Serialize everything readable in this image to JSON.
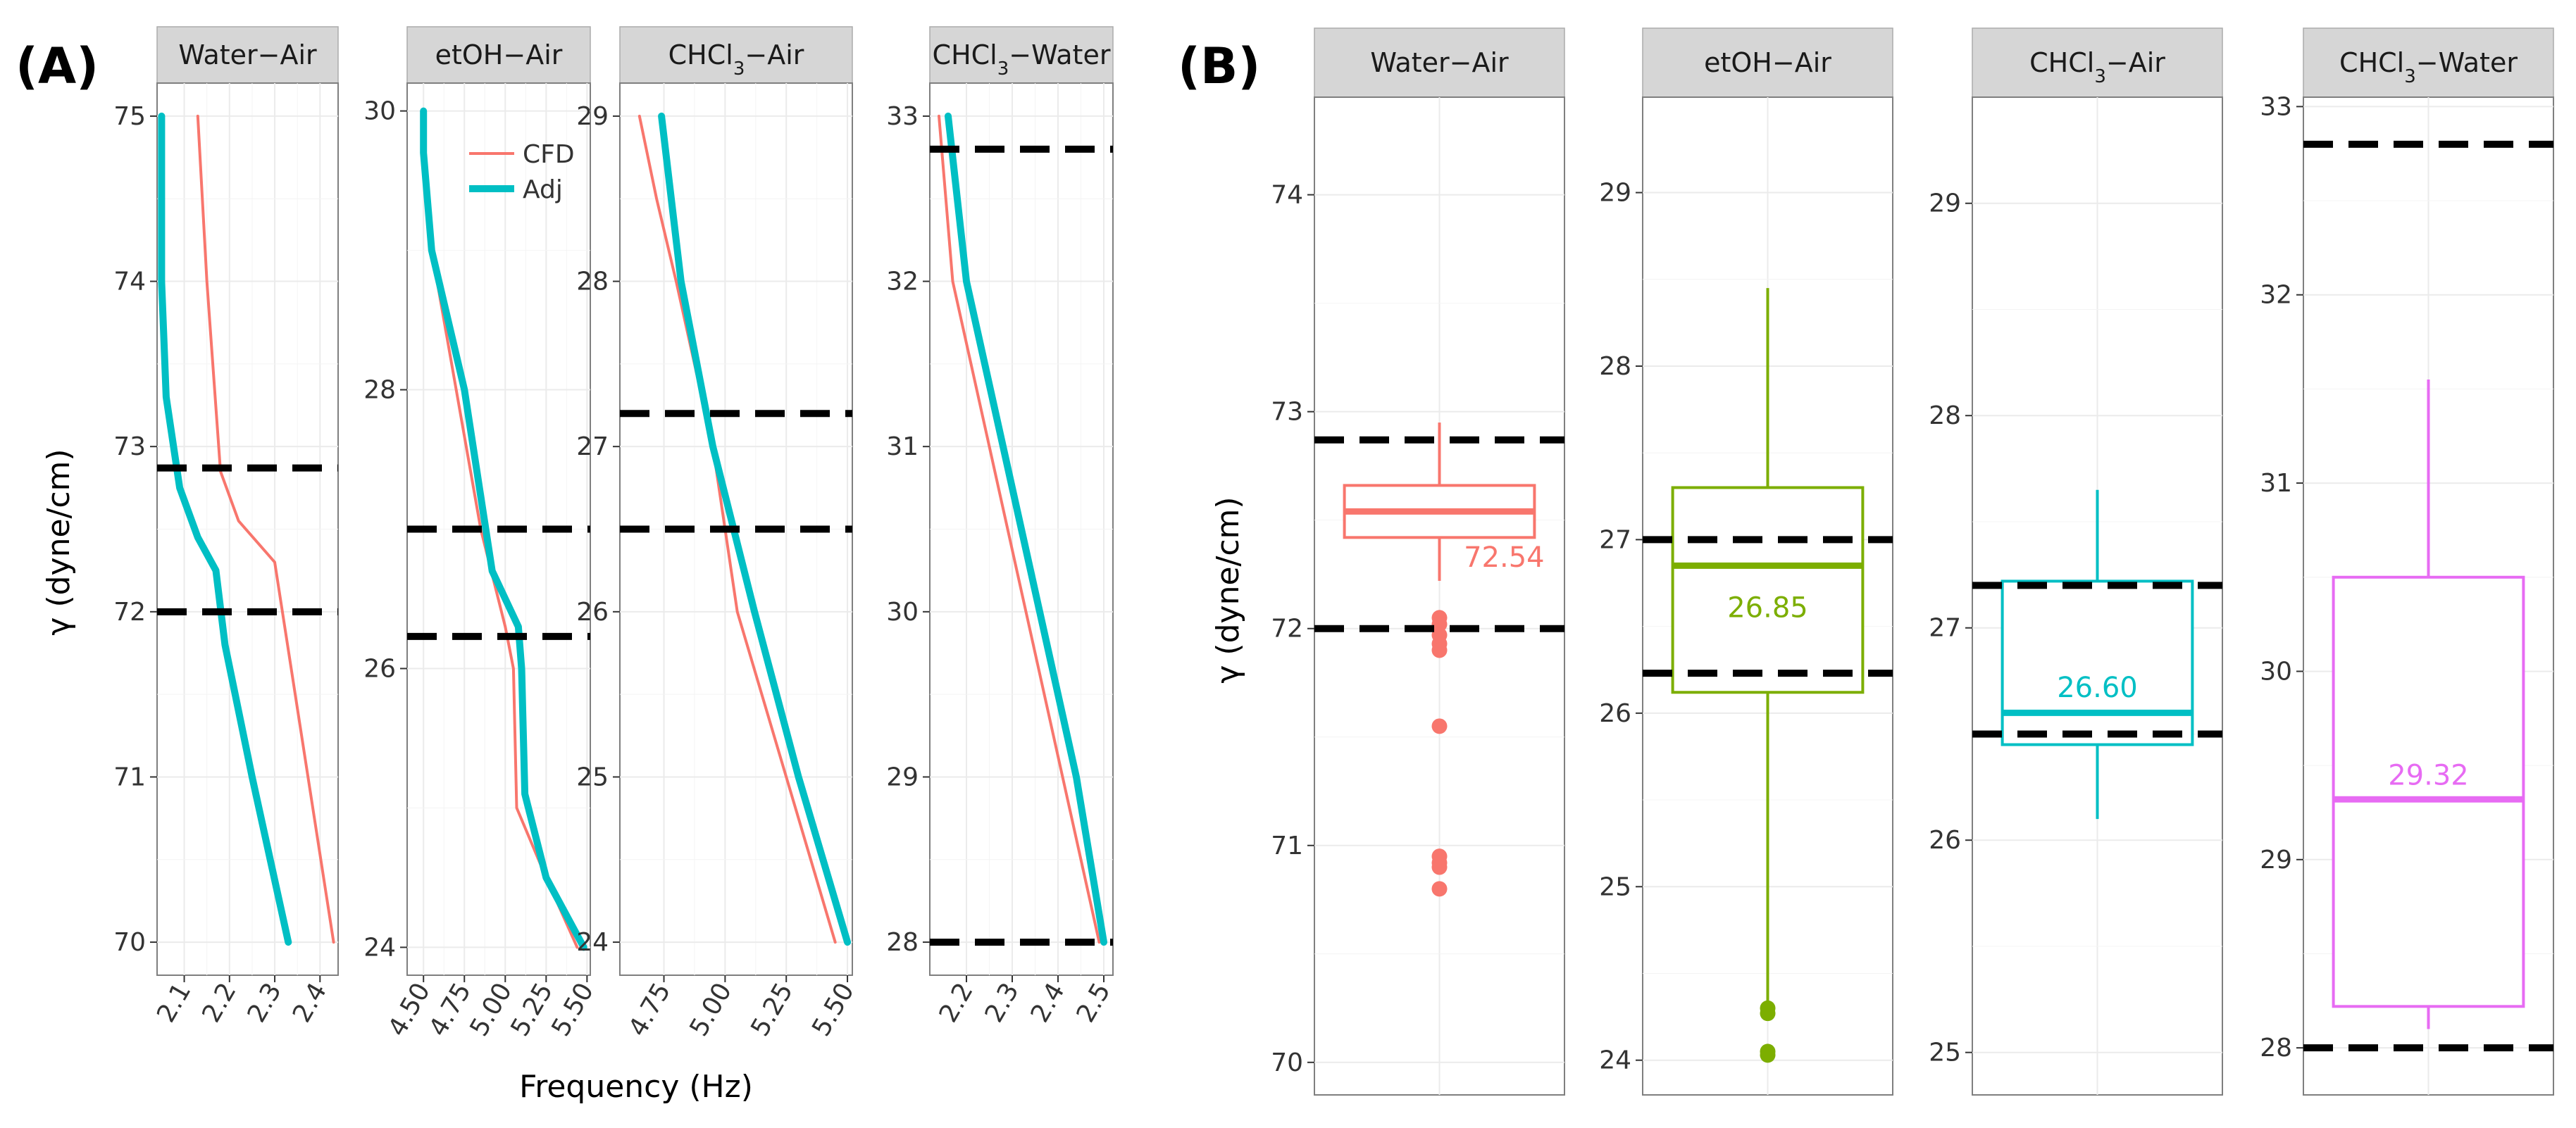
{
  "chart_data": [
    {
      "panel": "(A)",
      "type": "line",
      "ylabel": "γ (dyne/cm)",
      "xlabel": "Frequency (Hz)",
      "legend": {
        "placement": "top-left of second facet",
        "entries": [
          {
            "name": "CFD",
            "color": "#F8766D"
          },
          {
            "name": "Adj",
            "color": "#00BFC4"
          }
        ]
      },
      "grid": true,
      "facets": [
        {
          "strip": {
            "main": "Water−Air",
            "sub": ""
          },
          "xlim": [
            2.04,
            2.44
          ],
          "ylim": [
            69.8,
            75.2
          ],
          "xticks": [
            2.1,
            2.2,
            2.3,
            2.4
          ],
          "xtick_labels": [
            "2.1",
            "2.2",
            "2.3",
            "2.4"
          ],
          "yticks": [
            70,
            71,
            72,
            73,
            74,
            75
          ],
          "ytick_labels": [
            "70",
            "71",
            "72",
            "73",
            "74",
            "75"
          ],
          "hlines": [
            72.87,
            72.0
          ],
          "series": [
            {
              "name": "CFD",
              "color": "#F8766D",
              "x": [
                2.43,
                2.3,
                2.22,
                2.18,
                2.15,
                2.13
              ],
              "y": [
                70.0,
                72.3,
                72.55,
                72.85,
                74.0,
                75.0
              ]
            },
            {
              "name": "Adj",
              "color": "#00BFC4",
              "x": [
                2.33,
                2.25,
                2.19,
                2.17,
                2.13,
                2.09,
                2.06,
                2.05,
                2.05
              ],
              "y": [
                70.0,
                71.0,
                71.8,
                72.25,
                72.45,
                72.75,
                73.3,
                74.0,
                75.0
              ]
            }
          ]
        },
        {
          "strip": {
            "main": "etOH−Air",
            "sub": ""
          },
          "xlim": [
            4.4,
            5.52
          ],
          "ylim": [
            23.8,
            30.2
          ],
          "xticks": [
            4.5,
            4.75,
            5.0,
            5.25,
            5.5
          ],
          "xtick_labels": [
            "4.50",
            "4.75",
            "5.00",
            "5.25",
            "5.50"
          ],
          "yticks": [
            24,
            26,
            28,
            30
          ],
          "ytick_labels": [
            "24",
            "26",
            "28",
            "30"
          ],
          "hlines": [
            27.0,
            26.23
          ],
          "series": [
            {
              "name": "CFD",
              "color": "#F8766D",
              "x": [
                5.44,
                5.25,
                5.07,
                5.05,
                5.0,
                4.85,
                4.55,
                4.5,
                4.5
              ],
              "y": [
                24.0,
                24.5,
                25.0,
                26.0,
                26.3,
                27.0,
                29.0,
                29.7,
                30.0
              ]
            },
            {
              "name": "Adj",
              "color": "#00BFC4",
              "x": [
                5.48,
                5.25,
                5.12,
                5.1,
                5.08,
                4.92,
                4.75,
                4.55,
                4.5,
                4.5
              ],
              "y": [
                24.0,
                24.5,
                25.1,
                26.0,
                26.3,
                26.7,
                28.0,
                29.0,
                29.7,
                30.0
              ]
            }
          ]
        },
        {
          "strip": {
            "main": "CHCl",
            "sub": "3",
            "rest": "−Air"
          },
          "xlim": [
            4.57,
            5.52
          ],
          "ylim": [
            23.8,
            29.2
          ],
          "xticks": [
            4.75,
            5.0,
            5.25,
            5.5
          ],
          "xtick_labels": [
            "4.75",
            "5.00",
            "5.25",
            "5.50"
          ],
          "yticks": [
            24,
            25,
            26,
            27,
            28,
            29
          ],
          "ytick_labels": [
            "24",
            "25",
            "26",
            "27",
            "28",
            "29"
          ],
          "hlines": [
            27.2,
            26.5
          ],
          "series": [
            {
              "name": "CFD",
              "color": "#F8766D",
              "x": [
                5.45,
                5.25,
                5.05,
                4.95,
                4.8,
                4.72,
                4.65
              ],
              "y": [
                24.0,
                25.0,
                26.0,
                27.0,
                28.0,
                28.5,
                29.0
              ]
            },
            {
              "name": "Adj",
              "color": "#00BFC4",
              "x": [
                5.5,
                5.3,
                5.12,
                4.95,
                4.82,
                4.74
              ],
              "y": [
                24.0,
                25.0,
                26.0,
                27.0,
                28.0,
                29.0
              ]
            }
          ]
        },
        {
          "strip": {
            "main": "CHCl",
            "sub": "3",
            "rest": "−Water"
          },
          "xlim": [
            2.12,
            2.52
          ],
          "ylim": [
            27.8,
            33.2
          ],
          "xticks": [
            2.2,
            2.3,
            2.4,
            2.5
          ],
          "xtick_labels": [
            "2.2",
            "2.3",
            "2.4",
            "2.5"
          ],
          "yticks": [
            28,
            29,
            30,
            31,
            32,
            33
          ],
          "ytick_labels": [
            "28",
            "29",
            "30",
            "31",
            "32",
            "33"
          ],
          "hlines": [
            32.8,
            28.0
          ],
          "series": [
            {
              "name": "CFD",
              "color": "#F8766D",
              "x": [
                2.49,
                2.41,
                2.33,
                2.25,
                2.17,
                2.14
              ],
              "y": [
                28.0,
                29.0,
                30.0,
                31.0,
                32.0,
                33.0
              ]
            },
            {
              "name": "Adj",
              "color": "#00BFC4",
              "x": [
                2.5,
                2.44,
                2.36,
                2.28,
                2.2,
                2.16
              ],
              "y": [
                28.0,
                29.0,
                30.0,
                31.0,
                32.0,
                33.0
              ]
            }
          ]
        }
      ]
    },
    {
      "panel": "(B)",
      "type": "box",
      "ylabel": "γ (dyne/cm)",
      "grid": true,
      "facets": [
        {
          "strip": {
            "main": "Water−Air",
            "sub": ""
          },
          "color": "#F8766D",
          "ylim": [
            69.85,
            74.45
          ],
          "yticks": [
            70,
            71,
            72,
            73,
            74
          ],
          "ytick_labels": [
            "70",
            "71",
            "72",
            "73",
            "74"
          ],
          "hlines": [
            72.87,
            72.0
          ],
          "box": {
            "whisker_low": 72.22,
            "q1": 72.42,
            "median": 72.54,
            "q3": 72.66,
            "whisker_high": 72.95
          },
          "outliers": [
            72.05,
            72.02,
            71.97,
            71.93,
            71.9,
            71.55,
            70.95,
            70.92,
            70.9,
            70.8
          ],
          "median_label": "72.54",
          "label_y": 72.33,
          "label_side": "right"
        },
        {
          "strip": {
            "main": "etOH−Air",
            "sub": ""
          },
          "color": "#7CAE00",
          "ylim": [
            23.8,
            29.55
          ],
          "yticks": [
            24,
            25,
            26,
            27,
            28,
            29
          ],
          "ytick_labels": [
            "24",
            "25",
            "26",
            "27",
            "28",
            "29"
          ],
          "hlines": [
            27.0,
            26.23
          ],
          "box": {
            "whisker_low": 24.3,
            "q1": 26.12,
            "median": 26.85,
            "q3": 27.3,
            "whisker_high": 28.45
          },
          "outliers": [
            24.3,
            24.27,
            24.05,
            24.03
          ],
          "median_label": "26.85",
          "label_y": 26.61,
          "label_side": "center"
        },
        {
          "strip": {
            "main": "CHCl",
            "sub": "3",
            "rest": "−Air"
          },
          "color": "#00BFC4",
          "ylim": [
            24.8,
            29.5
          ],
          "yticks": [
            25,
            26,
            27,
            28,
            29
          ],
          "ytick_labels": [
            "25",
            "26",
            "27",
            "28",
            "29"
          ],
          "hlines": [
            27.2,
            26.5
          ],
          "box": {
            "whisker_low": 26.1,
            "q1": 26.45,
            "median": 26.6,
            "q3": 27.22,
            "whisker_high": 27.65
          },
          "outliers": [],
          "median_label": "26.60",
          "label_y": 26.72,
          "label_side": "center"
        },
        {
          "strip": {
            "main": "CHCl",
            "sub": "3",
            "rest": "−Water"
          },
          "color": "#E76BF3",
          "ylim": [
            27.75,
            33.05
          ],
          "yticks": [
            28,
            29,
            30,
            31,
            32,
            33
          ],
          "ytick_labels": [
            "28",
            "29",
            "30",
            "31",
            "32",
            "33"
          ],
          "hlines": [
            32.8,
            28.0
          ],
          "box": {
            "whisker_low": 28.1,
            "q1": 28.22,
            "median": 29.32,
            "q3": 30.5,
            "whisker_high": 31.55
          },
          "outliers": [],
          "median_label": "29.32",
          "label_y": 29.45,
          "label_side": "center"
        }
      ]
    }
  ]
}
